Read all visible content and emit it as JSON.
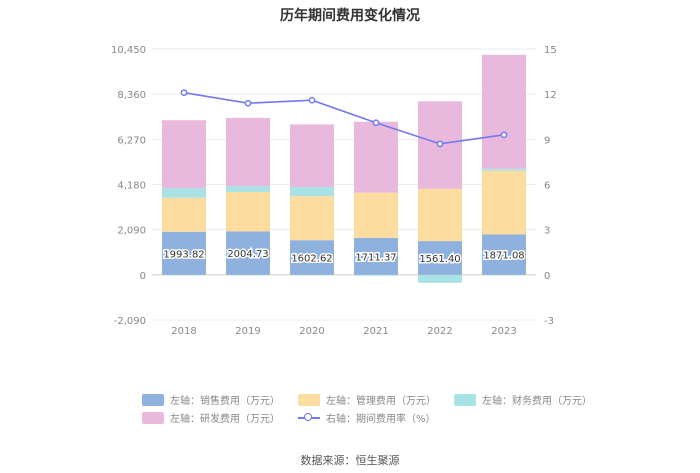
{
  "title": "历年期间费用变化情况",
  "source": "数据来源：恒生聚源",
  "chart_data": {
    "type": "bar",
    "stacked": true,
    "categories": [
      "2018",
      "2019",
      "2020",
      "2021",
      "2022",
      "2023"
    ],
    "y_left": {
      "ticks": [
        "10,450",
        "8,360",
        "6,270",
        "4,180",
        "2,090",
        "0",
        "-2,090"
      ],
      "min": -2090,
      "max": 10450
    },
    "y_right": {
      "ticks": [
        "15",
        "12",
        "9",
        "6",
        "3",
        "0",
        "-3"
      ],
      "min": -3,
      "max": 15
    },
    "series": [
      {
        "name": "左轴：销售费用（万元）",
        "color": "#8eb1de",
        "values": [
          1993.82,
          2004.73,
          1602.62,
          1711.37,
          1561.4,
          1871.08
        ],
        "labels": [
          "1993.82",
          "2004.73",
          "1602.62",
          "1711.37",
          "1561.40",
          "1871.08"
        ]
      },
      {
        "name": "左轴：管理费用（万元）",
        "color": "#fddca0",
        "values": [
          1570,
          1830,
          2040,
          2090,
          2420,
          2950
        ]
      },
      {
        "name": "左轴：财务费用（万元）",
        "color": "#a8e2e4",
        "values": [
          450,
          270,
          420,
          -40,
          -370,
          90
        ]
      },
      {
        "name": "左轴：研发费用（万元）",
        "color": "#e8b9dc",
        "values": [
          3140,
          3160,
          2900,
          3280,
          4050,
          5270
        ]
      }
    ],
    "line": {
      "name": "右轴：期间费用率（%）",
      "color": "#7278ee",
      "values": [
        12.1,
        11.4,
        11.6,
        10.1,
        8.7,
        9.3
      ]
    },
    "legend_position": "bottom",
    "grid": true
  }
}
